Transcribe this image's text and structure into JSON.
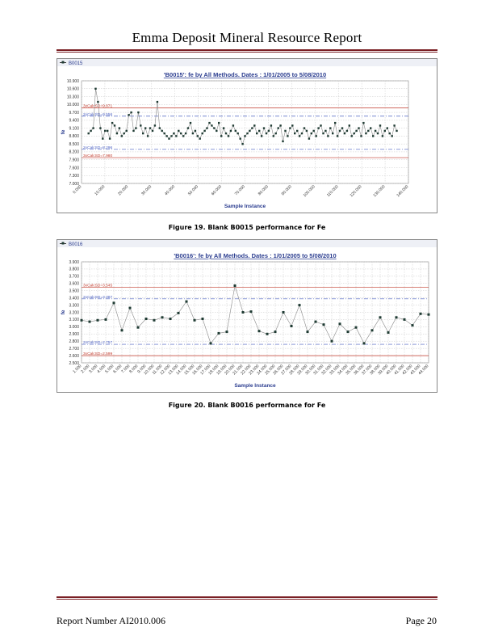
{
  "header": {
    "title": "Emma Deposit Mineral Resource Report"
  },
  "figures": [
    {
      "caption": "Figure 19. Blank B0015 performance for Fe"
    },
    {
      "caption": "Figure 20. Blank B0016 performance for Fe"
    }
  ],
  "footer": {
    "report_number": "Report Number AI2010.006",
    "page": "Page 20"
  },
  "chart_data": [
    {
      "type": "line",
      "legend_label": "B0015",
      "title": "'B0015': fe by All Methods. Dates : 1/01/2005 to 5/08/2010",
      "xlabel": "Sample Instance",
      "ylabel": "fe",
      "ylim": [
        7.0,
        10.9
      ],
      "xlim": [
        0,
        140
      ],
      "yticks": [
        "10.900",
        "10.600",
        "10.300",
        "10.000",
        "9.700",
        "9.400",
        "9.100",
        "8.800",
        "8.500",
        "8.200",
        "7.900",
        "7.600",
        "7.300",
        "7.000"
      ],
      "xticks": [
        "0.000",
        "10.000",
        "20.000",
        "30.000",
        "40.000",
        "50.000",
        "60.000",
        "70.000",
        "80.000",
        "90.000",
        "100.000",
        "110.000",
        "120.000",
        "130.000",
        "140.000"
      ],
      "ref_lines": [
        {
          "label": "3xCalcSD=9.871",
          "value": 9.871,
          "color": "#c0392b",
          "style": "solid"
        },
        {
          "label": "2xCalcSD=9.556",
          "value": 9.556,
          "color": "#4a5fc1",
          "style": "dashdot"
        },
        {
          "label": "2xCalcSD=8.296",
          "value": 8.296,
          "color": "#4a5fc1",
          "style": "dashdot"
        },
        {
          "label": "3xCalcSD=7.980",
          "value": 7.98,
          "color": "#c0392b",
          "style": "solid"
        }
      ],
      "values": [
        8.9,
        9.0,
        9.1,
        10.6,
        10.1,
        9.1,
        8.7,
        9.0,
        9.0,
        8.7,
        9.3,
        9.2,
        8.9,
        9.1,
        8.8,
        8.9,
        9.0,
        9.6,
        9.7,
        9.0,
        9.1,
        9.7,
        9.2,
        8.9,
        9.1,
        8.8,
        9.1,
        9.0,
        9.2,
        10.1,
        9.1,
        9.0,
        8.9,
        8.8,
        8.7,
        8.8,
        8.9,
        8.8,
        9.0,
        8.9,
        8.8,
        8.9,
        9.1,
        9.3,
        8.9,
        9.0,
        8.8,
        8.7,
        8.9,
        9.0,
        9.1,
        9.3,
        9.2,
        9.1,
        9.0,
        9.3,
        8.8,
        9.1,
        8.9,
        8.8,
        9.0,
        9.2,
        9.0,
        8.9,
        8.7,
        8.5,
        8.8,
        8.9,
        9.0,
        9.1,
        9.2,
        8.9,
        9.0,
        8.8,
        9.1,
        8.9,
        9.0,
        9.2,
        8.8,
        8.9,
        9.1,
        9.2,
        8.6,
        9.0,
        8.8,
        9.1,
        9.2,
        8.9,
        9.0,
        8.8,
        8.9,
        9.1,
        9.0,
        8.7,
        8.9,
        9.0,
        8.8,
        9.1,
        9.2,
        8.9,
        9.0,
        8.8,
        9.1,
        8.9,
        9.3,
        8.8,
        9.0,
        9.1,
        8.9,
        9.0,
        9.2,
        8.8,
        8.9,
        9.0,
        9.1,
        8.8,
        9.3,
        8.9,
        9.0,
        9.1,
        8.8,
        9.0,
        8.9,
        9.2,
        8.8,
        9.0,
        9.1,
        8.9,
        8.8,
        9.2,
        9.0
      ]
    },
    {
      "type": "line",
      "legend_label": "B0016",
      "title": "'B0016': fe by All Methods. Dates : 1/01/2005 to 5/08/2010",
      "xlabel": "Sample Instance",
      "ylabel": "fe",
      "ylim": [
        2.5,
        3.9
      ],
      "xlim": [
        1,
        44
      ],
      "yticks": [
        "3.900",
        "3.800",
        "3.700",
        "3.600",
        "3.500",
        "3.400",
        "3.300",
        "3.200",
        "3.100",
        "3.000",
        "2.900",
        "2.800",
        "2.700",
        "2.600",
        "2.500"
      ],
      "xticks": [
        "1.000",
        "2.000",
        "3.000",
        "4.000",
        "5.000",
        "6.000",
        "7.000",
        "8.000",
        "9.000",
        "10.000",
        "11.000",
        "12.000",
        "13.000",
        "14.000",
        "15.000",
        "16.000",
        "17.000",
        "18.000",
        "19.000",
        "20.000",
        "21.000",
        "22.000",
        "23.000",
        "24.000",
        "25.000",
        "26.000",
        "27.000",
        "28.000",
        "29.000",
        "30.000",
        "31.000",
        "32.000",
        "33.000",
        "34.000",
        "35.000",
        "36.000",
        "37.000",
        "38.000",
        "39.000",
        "40.000",
        "41.000",
        "42.000",
        "43.000",
        "44.000"
      ],
      "ref_lines": [
        {
          "label": "3xCalcSD=3.545",
          "value": 3.545,
          "color": "#c0392b",
          "style": "solid"
        },
        {
          "label": "2xCalcSD=3.387",
          "value": 3.387,
          "color": "#4a5fc1",
          "style": "dashdot"
        },
        {
          "label": "2xCalcSD=2.757",
          "value": 2.757,
          "color": "#4a5fc1",
          "style": "dashdot"
        },
        {
          "label": "3xCalcSD=2.599",
          "value": 2.599,
          "color": "#c0392b",
          "style": "solid"
        }
      ],
      "values": [
        3.09,
        3.07,
        3.09,
        3.1,
        3.33,
        2.95,
        3.26,
        2.99,
        3.11,
        3.09,
        3.13,
        3.11,
        3.19,
        3.35,
        3.09,
        3.11,
        2.77,
        2.91,
        2.93,
        3.57,
        3.2,
        3.21,
        2.94,
        2.9,
        2.93,
        3.2,
        3.01,
        3.3,
        2.93,
        3.07,
        3.03,
        2.8,
        3.04,
        2.93,
        2.99,
        2.77,
        2.95,
        3.13,
        2.92,
        3.13,
        3.1,
        3.02,
        3.18,
        3.17
      ]
    }
  ]
}
